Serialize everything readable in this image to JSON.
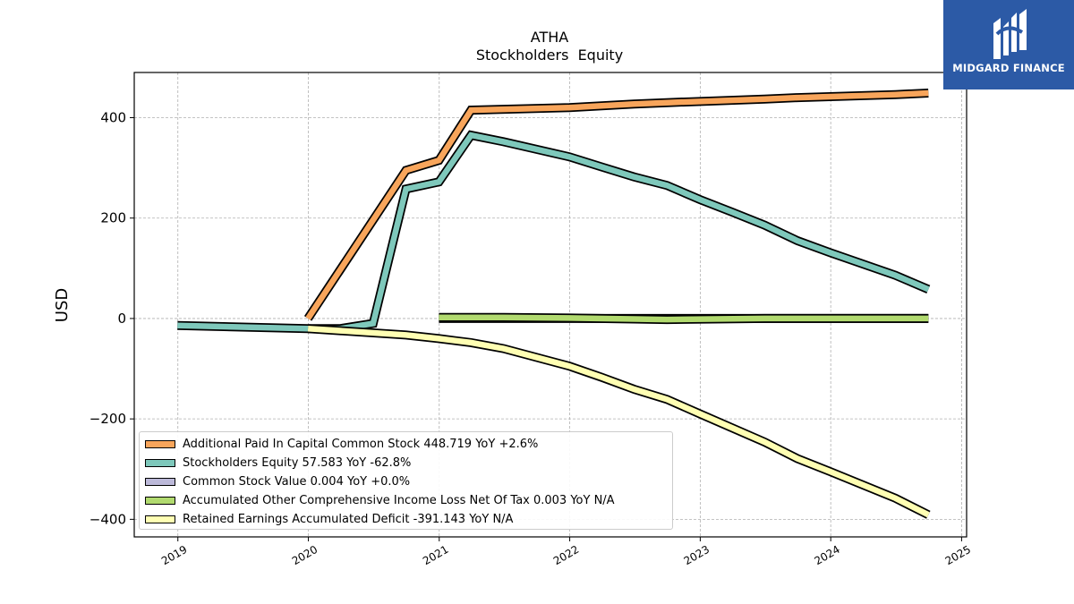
{
  "chart_data": {
    "type": "line",
    "title": "ATHA",
    "subtitle": "Stockholders  Equity",
    "ylabel": "USD",
    "xlabel": "",
    "xlim": [
      "2018-09-01",
      "2025-01-15"
    ],
    "ylim": [
      -435,
      490
    ],
    "x_ticks": [
      "2019",
      "2020",
      "2021",
      "2022",
      "2023",
      "2024",
      "2025"
    ],
    "y_ticks": [
      400,
      200,
      0,
      -200,
      -400
    ],
    "y_tick_labels": [
      "400",
      "200",
      "0",
      "−200",
      "−400"
    ],
    "grid": true,
    "legend_position": "lower-left",
    "series": [
      {
        "name": "Additional Paid In Capital Common Stock  448.719 YoY +2.6%",
        "color": "#f8a55b",
        "points": [
          [
            "2019-12-31",
            0
          ],
          [
            "2020-09-30",
            295
          ],
          [
            "2020-12-31",
            315
          ],
          [
            "2021-03-31",
            415
          ],
          [
            "2021-12-31",
            420
          ],
          [
            "2022-06-30",
            427
          ],
          [
            "2022-09-30",
            430
          ],
          [
            "2023-06-30",
            437
          ],
          [
            "2023-09-30",
            440
          ],
          [
            "2024-06-30",
            446
          ],
          [
            "2024-09-30",
            449
          ]
        ]
      },
      {
        "name": "Stockholders Equity  57.583 YoY -62.8%",
        "color": "#7ec8bb",
        "points": [
          [
            "2018-12-31",
            -14
          ],
          [
            "2019-12-31",
            -20
          ],
          [
            "2020-03-31",
            -20
          ],
          [
            "2020-06-30",
            -10
          ],
          [
            "2020-09-30",
            258
          ],
          [
            "2020-12-31",
            272
          ],
          [
            "2021-03-31",
            365
          ],
          [
            "2021-06-30",
            352
          ],
          [
            "2021-12-31",
            322
          ],
          [
            "2022-03-31",
            302
          ],
          [
            "2022-06-30",
            282
          ],
          [
            "2022-09-30",
            265
          ],
          [
            "2022-12-31",
            237
          ],
          [
            "2023-03-31",
            212
          ],
          [
            "2023-06-30",
            186
          ],
          [
            "2023-09-30",
            155
          ],
          [
            "2023-12-31",
            131
          ],
          [
            "2024-06-30",
            86
          ],
          [
            "2024-09-30",
            58
          ]
        ]
      },
      {
        "name": "Common Stock Value  0.004 YoY +0.0%",
        "color": "#bcb9d9",
        "points": [
          [
            "2020-12-31",
            0
          ],
          [
            "2024-09-30",
            0
          ]
        ]
      },
      {
        "name": "Accumulated Other Comprehensive Income Loss Net Of Tax  0.003 YoY N/A",
        "color": "#b1da6f",
        "points": [
          [
            "2020-12-31",
            2
          ],
          [
            "2021-06-30",
            2
          ],
          [
            "2021-12-31",
            1
          ],
          [
            "2022-06-30",
            -1
          ],
          [
            "2022-09-30",
            -2
          ],
          [
            "2023-06-30",
            0
          ],
          [
            "2024-09-30",
            0
          ]
        ]
      },
      {
        "name": "Retained Earnings Accumulated Deficit  -391.143 YoY N/A",
        "color": "#ffffb3",
        "points": [
          [
            "2019-12-31",
            -20
          ],
          [
            "2020-09-30",
            -33
          ],
          [
            "2020-12-31",
            -40
          ],
          [
            "2021-03-31",
            -48
          ],
          [
            "2021-06-30",
            -60
          ],
          [
            "2021-12-31",
            -95
          ],
          [
            "2022-03-31",
            -117
          ],
          [
            "2022-06-30",
            -141
          ],
          [
            "2022-09-30",
            -161
          ],
          [
            "2022-12-31",
            -190
          ],
          [
            "2023-06-30",
            -246
          ],
          [
            "2023-09-30",
            -279
          ],
          [
            "2023-12-31",
            -305
          ],
          [
            "2024-06-30",
            -358
          ],
          [
            "2024-09-30",
            -391
          ]
        ]
      }
    ]
  },
  "logo": {
    "text": "MIDGARD FINANCE"
  }
}
